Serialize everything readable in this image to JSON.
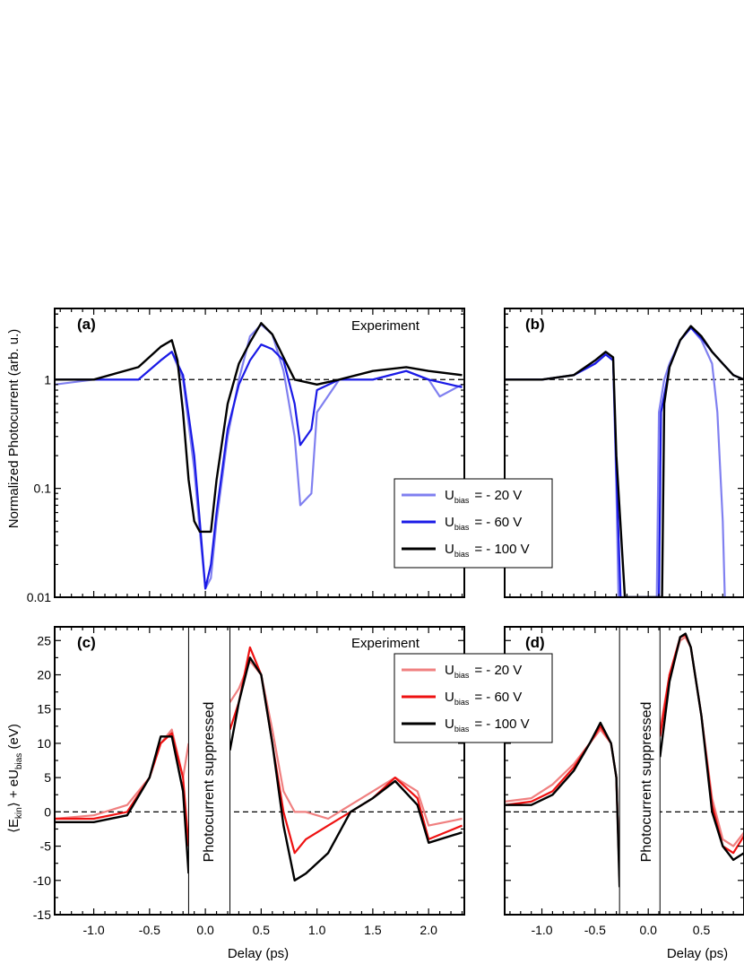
{
  "figure": {
    "panel_labels": [
      "(a)",
      "(b)",
      "(c)",
      "(d)"
    ],
    "annotations": {
      "a": "Experiment",
      "c": "Experiment"
    },
    "suppressed_text": "Photocurrent suppressed",
    "xlabel": "Delay (ps)",
    "ylabel_top": "Normalized Photocurrent (arb. u.)",
    "ylabel_bottom": {
      "part1": "⟨E",
      "sub1": "kin",
      "part2": "⟩ + eU",
      "sub2": "bias",
      "part3": " (eV)"
    }
  },
  "legend_top": [
    {
      "prefix": "U",
      "sub": "bias",
      "value": "=   - 20 V",
      "color": "#8080f0"
    },
    {
      "prefix": "U",
      "sub": "bias",
      "value": "=   - 60 V",
      "color": "#1a1ae6"
    },
    {
      "prefix": "U",
      "sub": "bias",
      "value": "= - 100 V",
      "color": "#000000"
    }
  ],
  "legend_bottom": [
    {
      "prefix": "U",
      "sub": "bias",
      "value": "=   - 20 V",
      "color": "#f08080"
    },
    {
      "prefix": "U",
      "sub": "bias",
      "value": "=   - 60 V",
      "color": "#ee1111"
    },
    {
      "prefix": "U",
      "sub": "bias",
      "value": "= - 100 V",
      "color": "#000000"
    }
  ],
  "chart_data": [
    {
      "panel": "(a)",
      "type": "line",
      "yscale": "log",
      "xlim": [
        -1.35,
        2.32
      ],
      "ylim": [
        0.01,
        4.5
      ],
      "ytick_labels": [
        "0.01",
        "0.1",
        "1"
      ],
      "ytick_values": [
        0.01,
        0.1,
        1
      ],
      "reference_line": 1,
      "series": [
        {
          "name": "- 20 V",
          "color": "#8080f0",
          "x": [
            -1.35,
            -1.0,
            -0.6,
            -0.4,
            -0.3,
            -0.2,
            -0.1,
            -0.05,
            0.0,
            0.05,
            0.1,
            0.2,
            0.3,
            0.4,
            0.5,
            0.6,
            0.7,
            0.8,
            0.85,
            0.95,
            1.0,
            1.2,
            1.5,
            1.8,
            2.0,
            2.1,
            2.3
          ],
          "y": [
            0.9,
            1.0,
            1.0,
            1.5,
            1.8,
            1.0,
            0.15,
            0.04,
            0.012,
            0.015,
            0.05,
            0.3,
            1.0,
            2.5,
            3.2,
            2.6,
            1.2,
            0.3,
            0.07,
            0.09,
            0.5,
            1.0,
            1.0,
            1.2,
            1.0,
            0.7,
            0.9
          ]
        },
        {
          "name": "- 60 V",
          "color": "#1a1ae6",
          "x": [
            -1.35,
            -1.0,
            -0.6,
            -0.4,
            -0.3,
            -0.2,
            -0.1,
            -0.05,
            0.0,
            0.05,
            0.1,
            0.2,
            0.3,
            0.4,
            0.5,
            0.6,
            0.7,
            0.8,
            0.85,
            0.95,
            1.0,
            1.2,
            1.5,
            1.8,
            2.0,
            2.3
          ],
          "y": [
            1.0,
            1.0,
            1.0,
            1.5,
            1.8,
            1.1,
            0.2,
            0.05,
            0.012,
            0.02,
            0.06,
            0.35,
            0.9,
            1.5,
            2.1,
            1.9,
            1.5,
            0.6,
            0.25,
            0.35,
            0.8,
            1.0,
            1.0,
            1.2,
            1.0,
            0.85
          ]
        },
        {
          "name": "- 100 V",
          "color": "#000000",
          "x": [
            -1.35,
            -1.0,
            -0.6,
            -0.4,
            -0.3,
            -0.25,
            -0.2,
            -0.15,
            -0.1,
            -0.05,
            0.0,
            0.05,
            0.1,
            0.2,
            0.3,
            0.4,
            0.5,
            0.6,
            0.7,
            0.8,
            1.0,
            1.2,
            1.5,
            1.8,
            2.0,
            2.3
          ],
          "y": [
            1.0,
            1.0,
            1.3,
            2.0,
            2.3,
            1.5,
            0.5,
            0.12,
            0.05,
            0.04,
            0.04,
            0.04,
            0.12,
            0.6,
            1.4,
            2.2,
            3.3,
            2.6,
            1.6,
            1.0,
            0.9,
            1.0,
            1.2,
            1.3,
            1.2,
            1.1
          ]
        }
      ]
    },
    {
      "panel": "(b)",
      "type": "line",
      "yscale": "log",
      "xlim": [
        -1.35,
        0.9
      ],
      "ylim": [
        0.01,
        4.5
      ],
      "reference_line": 1,
      "series": [
        {
          "name": "- 20 V",
          "color": "#8080f0",
          "x": [
            -1.35,
            -1.0,
            -0.7,
            -0.5,
            -0.4,
            -0.33,
            -0.3,
            -0.28,
            0.08,
            0.1,
            0.15,
            0.2,
            0.3,
            0.4,
            0.5,
            0.6,
            0.65,
            0.7,
            0.72
          ],
          "y": [
            1.0,
            1.0,
            1.1,
            1.4,
            1.7,
            1.5,
            0.1,
            0.01,
            0.01,
            0.5,
            1.0,
            1.4,
            2.3,
            3.0,
            2.3,
            1.4,
            0.5,
            0.05,
            0.01
          ]
        },
        {
          "name": "- 60 V",
          "color": "#1a1ae6",
          "x": [
            -1.35,
            -1.0,
            -0.7,
            -0.5,
            -0.4,
            -0.33,
            -0.3,
            -0.26,
            0.1,
            0.12,
            0.2,
            0.3,
            0.4,
            0.5,
            0.6,
            0.7,
            0.8,
            0.9
          ],
          "y": [
            1.0,
            1.0,
            1.1,
            1.4,
            1.7,
            1.5,
            0.15,
            0.01,
            0.01,
            0.5,
            1.3,
            2.3,
            3.0,
            2.4,
            1.8,
            1.4,
            1.1,
            1.0
          ]
        },
        {
          "name": "- 100 V",
          "color": "#000000",
          "x": [
            -1.35,
            -1.0,
            -0.7,
            -0.5,
            -0.4,
            -0.33,
            -0.3,
            -0.22,
            0.13,
            0.15,
            0.2,
            0.3,
            0.4,
            0.5,
            0.6,
            0.7,
            0.8,
            0.9
          ],
          "y": [
            1.0,
            1.0,
            1.1,
            1.5,
            1.8,
            1.6,
            0.2,
            0.01,
            0.01,
            0.6,
            1.3,
            2.3,
            3.1,
            2.5,
            1.8,
            1.4,
            1.1,
            1.0
          ]
        }
      ]
    },
    {
      "panel": "(c)",
      "type": "line",
      "xlim": [
        -1.35,
        2.32
      ],
      "ylim": [
        -15,
        27
      ],
      "ytick_labels": [
        "-15",
        "-10",
        "-5",
        "0",
        "5",
        "10",
        "15",
        "20",
        "25"
      ],
      "xtick_labels": [
        "-1.0",
        "-0.5",
        "0.0",
        "0.5",
        "1.0",
        "1.5",
        "2.0"
      ],
      "suppressed_region": [
        -0.15,
        0.22
      ],
      "reference_line": 0,
      "series": [
        {
          "name": "- 20 V",
          "color": "#f08080",
          "x": [
            -1.35,
            -1.0,
            -0.7,
            -0.5,
            -0.4,
            -0.3,
            -0.2,
            -0.15,
            null,
            0.22,
            0.3,
            0.4,
            0.5,
            0.6,
            0.7,
            0.8,
            0.9,
            1.1,
            1.3,
            1.5,
            1.7,
            1.9,
            2.0,
            2.3
          ],
          "y": [
            -1,
            -0.5,
            1,
            5,
            10,
            12,
            5,
            10,
            null,
            16,
            18,
            22,
            20,
            12,
            3,
            0,
            0,
            -1,
            1,
            3,
            5,
            3,
            -2,
            -1
          ]
        },
        {
          "name": "- 60 V",
          "color": "#ee1111",
          "x": [
            -1.35,
            -1.0,
            -0.7,
            -0.5,
            -0.4,
            -0.3,
            -0.2,
            -0.15,
            null,
            0.22,
            0.3,
            0.4,
            0.5,
            0.6,
            0.7,
            0.8,
            0.9,
            1.1,
            1.3,
            1.5,
            1.7,
            1.9,
            2.0,
            2.3
          ],
          "y": [
            -1,
            -1,
            0,
            5,
            10,
            11.5,
            5,
            -5,
            null,
            12,
            16,
            24,
            20,
            10,
            0,
            -6,
            -4,
            -2,
            0,
            2,
            5,
            2,
            -4,
            -2
          ]
        },
        {
          "name": "- 100 V",
          "color": "#000000",
          "x": [
            -1.35,
            -1.0,
            -0.7,
            -0.5,
            -0.4,
            -0.3,
            -0.2,
            -0.15,
            null,
            0.22,
            0.3,
            0.4,
            0.5,
            0.6,
            0.7,
            0.8,
            0.9,
            1.1,
            1.3,
            1.5,
            1.7,
            1.9,
            2.0,
            2.3
          ],
          "y": [
            -1.5,
            -1.5,
            -0.5,
            5,
            11,
            11,
            3,
            -9,
            null,
            9,
            16,
            22.5,
            20,
            10,
            -2,
            -10,
            -9,
            -6,
            0,
            2,
            4.5,
            1,
            -4.5,
            -3
          ]
        }
      ]
    },
    {
      "panel": "(d)",
      "type": "line",
      "xlim": [
        -1.35,
        0.9
      ],
      "ylim": [
        -15,
        27
      ],
      "xtick_labels": [
        "-1.0",
        "-0.5",
        "0.0",
        "0.5"
      ],
      "suppressed_region": [
        -0.27,
        0.11
      ],
      "reference_line": 0,
      "series": [
        {
          "name": "- 20 V",
          "color": "#f08080",
          "x": [
            -1.35,
            -1.1,
            -0.9,
            -0.7,
            -0.55,
            -0.45,
            -0.35,
            -0.3,
            -0.27,
            null,
            0.11,
            0.2,
            0.3,
            0.35,
            0.4,
            0.5,
            0.6,
            0.7,
            0.8,
            0.9
          ],
          "y": [
            1.5,
            2,
            4,
            7,
            10,
            12,
            10,
            5,
            -10,
            null,
            12,
            20,
            25,
            25.5,
            24,
            14,
            2,
            -4,
            -5,
            -3
          ]
        },
        {
          "name": "- 60 V",
          "color": "#ee1111",
          "x": [
            -1.35,
            -1.1,
            -0.9,
            -0.7,
            -0.55,
            -0.45,
            -0.35,
            -0.3,
            -0.27,
            null,
            0.11,
            0.2,
            0.3,
            0.35,
            0.4,
            0.5,
            0.6,
            0.7,
            0.8,
            0.9
          ],
          "y": [
            1,
            1.5,
            3,
            6.5,
            10,
            12.5,
            10,
            5,
            -10,
            null,
            11,
            20,
            25.5,
            25.8,
            24,
            14,
            1,
            -5,
            -6,
            -3.5
          ]
        },
        {
          "name": "- 100 V",
          "color": "#000000",
          "x": [
            -1.35,
            -1.1,
            -0.9,
            -0.7,
            -0.55,
            -0.45,
            -0.35,
            -0.3,
            -0.27,
            null,
            0.11,
            0.2,
            0.3,
            0.35,
            0.4,
            0.5,
            0.6,
            0.7,
            0.8,
            0.9
          ],
          "y": [
            1,
            1,
            2.5,
            6,
            10,
            13,
            10,
            5,
            -11,
            null,
            8,
            19,
            25.5,
            26,
            24,
            14,
            0,
            -5,
            -7,
            -6
          ]
        }
      ]
    }
  ]
}
